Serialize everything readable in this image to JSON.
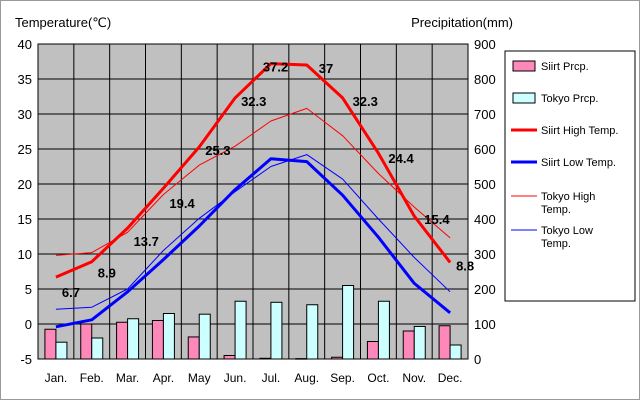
{
  "chart_data": {
    "type": "bar+line",
    "categories": [
      "Jan.",
      "Feb.",
      "Mar.",
      "Apr.",
      "May",
      "Jun.",
      "Jul.",
      "Aug.",
      "Sep.",
      "Oct.",
      "Nov.",
      "Dec."
    ],
    "ylabel_left": "Temperature(℃)",
    "ylabel_right": "Precipitation(mm)",
    "ylim_left": [
      -5,
      40
    ],
    "ylim_right": [
      0,
      900
    ],
    "yticks_left": [
      -5,
      0,
      5,
      10,
      15,
      20,
      25,
      30,
      35,
      40
    ],
    "yticks_right": [
      0,
      100,
      200,
      300,
      400,
      500,
      600,
      700,
      800,
      900
    ],
    "grid": true,
    "legend_position": "right",
    "bar_series": [
      {
        "name": "Siirt Prcp.",
        "axis": "right",
        "color": "#ff88bb",
        "values": [
          85,
          100,
          105,
          110,
          63,
          10,
          2,
          1,
          5,
          50,
          80,
          95
        ]
      },
      {
        "name": "Tokyo Prcp.",
        "axis": "right",
        "color": "#ccffff",
        "values": [
          48,
          60,
          115,
          130,
          128,
          165,
          162,
          155,
          210,
          165,
          93,
          40
        ]
      }
    ],
    "line_series": [
      {
        "name": "Siirt High Temp.",
        "axis": "left",
        "color": "#ff0000",
        "width": 3,
        "values": [
          6.7,
          8.9,
          13.7,
          19.4,
          25.3,
          32.3,
          37.2,
          37,
          32.3,
          24.4,
          15.4,
          8.8
        ],
        "labels": [
          "6.7",
          "8.9",
          "13.7",
          "19.4",
          "25.3",
          "32.3",
          "37.2",
          "37",
          "32.3",
          "24.4",
          "15.4",
          "8.8"
        ]
      },
      {
        "name": "Siirt Low Temp.",
        "axis": "left",
        "color": "#0000ff",
        "width": 3,
        "values": [
          -0.4,
          0.6,
          4.6,
          9.2,
          14.0,
          19.2,
          23.6,
          23.2,
          18.4,
          12.4,
          5.8,
          1.6
        ]
      },
      {
        "name": "Tokyo High Temp.",
        "axis": "left",
        "color": "#ff0000",
        "width": 1,
        "values": [
          9.8,
          10.2,
          13.1,
          18.5,
          22.7,
          25.4,
          29.0,
          30.8,
          26.9,
          21.5,
          16.7,
          12.3
        ]
      },
      {
        "name": "Tokyo Low Temp.",
        "axis": "left",
        "color": "#0000ff",
        "width": 1,
        "values": [
          2.1,
          2.4,
          5.0,
          10.5,
          15.1,
          18.9,
          22.5,
          24.2,
          20.7,
          15.0,
          9.5,
          4.6
        ]
      }
    ],
    "legend": [
      {
        "label": "Siirt Prcp.",
        "kind": "box",
        "color": "#ff88bb"
      },
      {
        "label": "Tokyo Prcp.",
        "kind": "box",
        "color": "#ccffff"
      },
      {
        "label": "Siirt High Temp.",
        "kind": "line",
        "color": "#ff0000",
        "width": 3
      },
      {
        "label": "Siirt Low Temp.",
        "kind": "line",
        "color": "#0000ff",
        "width": 3
      },
      {
        "label": "Tokyo High Temp.",
        "kind": "line",
        "color": "#ff0000",
        "width": 1
      },
      {
        "label": "Tokyo Low Temp.",
        "kind": "line",
        "color": "#0000ff",
        "width": 1
      }
    ],
    "plot_background": "#c0c0c0"
  }
}
